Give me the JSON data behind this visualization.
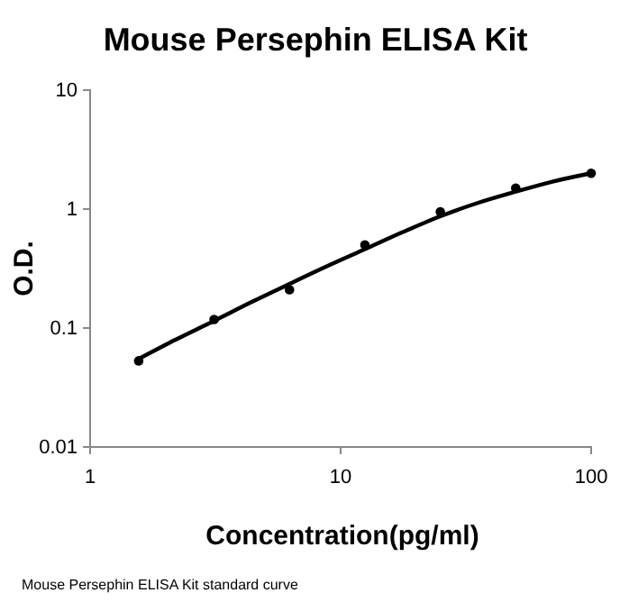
{
  "chart_data": {
    "type": "scatter",
    "title": "Mouse Persephin ELISA Kit",
    "xlabel": "Concentration(pg/ml)",
    "ylabel": "O.D.",
    "log": "xy",
    "xlim": [
      1,
      100
    ],
    "ylim": [
      0.01,
      10
    ],
    "xticks": [
      1,
      10,
      100
    ],
    "yticks": [
      0.01,
      0.1,
      1,
      10
    ],
    "grid": false,
    "marker": "circle",
    "series": [
      {
        "color": "#000000",
        "x": [
          1.5625,
          3.125,
          6.25,
          12.5,
          25,
          50,
          100
        ],
        "values": [
          0.053,
          0.118,
          0.21,
          0.5,
          0.95,
          1.5,
          2.0
        ]
      },
      {
        "type": "line",
        "color": "#000000",
        "marker": "none",
        "line_style": "solid",
        "x": [
          1.5625,
          2.2,
          3.125,
          4.4,
          6.25,
          8.8,
          12.5,
          17.7,
          25,
          35,
          50,
          70,
          100
        ],
        "values": [
          0.055,
          0.08,
          0.115,
          0.165,
          0.235,
          0.33,
          0.46,
          0.64,
          0.87,
          1.12,
          1.4,
          1.7,
          2.0
        ]
      }
    ],
    "annotations": [
      "Mouse Persephin ELISA Kit standard curve"
    ]
  }
}
